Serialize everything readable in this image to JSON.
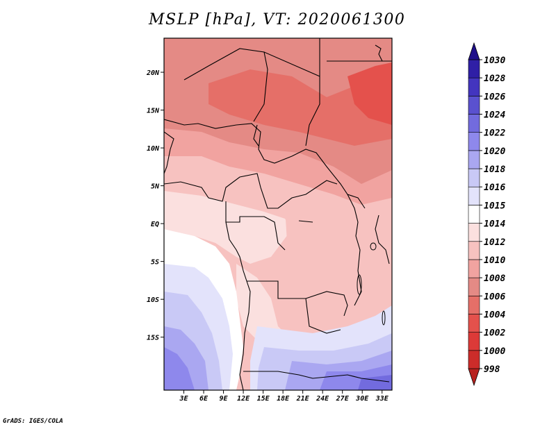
{
  "title": "MSLP [hPa], VT: 2020061300",
  "footer": "GrADS: IGES/COLA",
  "map": {
    "lon_range": [
      0,
      34.5
    ],
    "lat_range": [
      -22,
      24.5
    ],
    "lat_ticks": [
      {
        "value": 20,
        "label": "20N"
      },
      {
        "value": 15,
        "label": "15N"
      },
      {
        "value": 10,
        "label": "10N"
      },
      {
        "value": 5,
        "label": "5N"
      },
      {
        "value": 0,
        "label": "EQ"
      },
      {
        "value": -5,
        "label": "5S"
      },
      {
        "value": -10,
        "label": "10S"
      },
      {
        "value": -15,
        "label": "15S"
      }
    ],
    "lon_ticks": [
      {
        "value": 3,
        "label": "3E"
      },
      {
        "value": 6,
        "label": "6E"
      },
      {
        "value": 9,
        "label": "9E"
      },
      {
        "value": 12,
        "label": "12E"
      },
      {
        "value": 15,
        "label": "15E"
      },
      {
        "value": 18,
        "label": "18E"
      },
      {
        "value": 21,
        "label": "21E"
      },
      {
        "value": 24,
        "label": "24E"
      },
      {
        "value": 27,
        "label": "27E"
      },
      {
        "value": 30,
        "label": "30E"
      },
      {
        "value": 33,
        "label": "33E"
      }
    ]
  },
  "colorbar": {
    "levels": [
      "998",
      "1000",
      "1002",
      "1004",
      "1006",
      "1008",
      "1010",
      "1012",
      "1014",
      "1015",
      "1016",
      "1018",
      "1020",
      "1022",
      "1024",
      "1026",
      "1028",
      "1030"
    ],
    "colors": [
      "#b8221f",
      "#cc2c2a",
      "#dc3a38",
      "#e4514c",
      "#e56f68",
      "#e48a85",
      "#f1a3a0",
      "#f7c2c0",
      "#fbe0df",
      "#ffffff",
      "#e3e3fb",
      "#c9c9f6",
      "#aaa7f1",
      "#8e88ec",
      "#726bde",
      "#5a51cf",
      "#4335bf",
      "#2f1fa6",
      "#1f0f8a"
    ]
  }
}
